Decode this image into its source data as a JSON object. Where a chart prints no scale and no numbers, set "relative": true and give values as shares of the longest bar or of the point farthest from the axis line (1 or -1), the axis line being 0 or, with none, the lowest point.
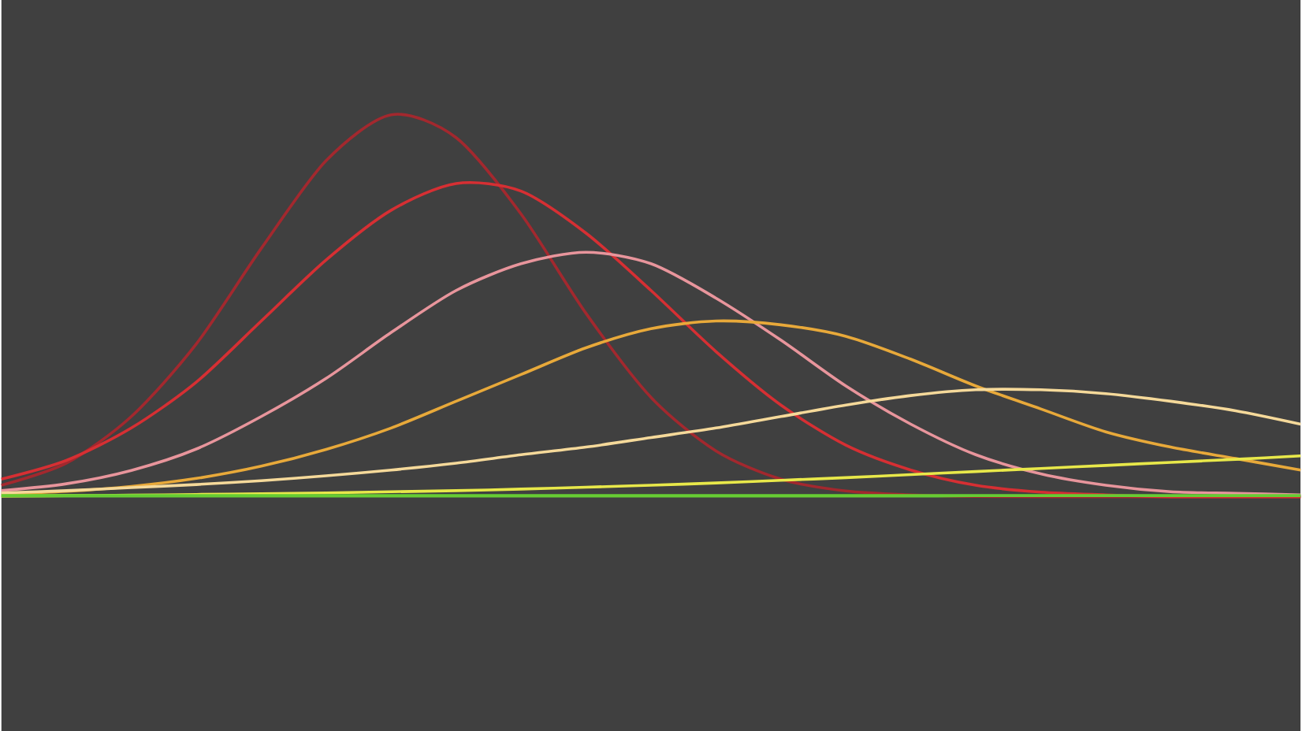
{
  "chart_data": {
    "type": "line",
    "relative": true,
    "categories": [
      null,
      null,
      null,
      null,
      null,
      null,
      null,
      null,
      null,
      null,
      null,
      null,
      null,
      null,
      null,
      null,
      null,
      null,
      null,
      null,
      null
    ],
    "series": [
      {
        "color": "#a3282e",
        "values": [
          0.03,
          0.088,
          0.21,
          0.4,
          0.65,
          0.88,
          1.0,
          0.94,
          0.74,
          0.48,
          0.26,
          0.12,
          0.046,
          0.015,
          0.005,
          0.001,
          0,
          0,
          0,
          0,
          0
        ]
      },
      {
        "color": "#d62f33",
        "values": [
          0.046,
          0.095,
          0.18,
          0.3,
          0.46,
          0.62,
          0.75,
          0.82,
          0.8,
          0.69,
          0.54,
          0.38,
          0.24,
          0.135,
          0.07,
          0.03,
          0.012,
          0.005,
          0,
          0,
          0
        ]
      },
      {
        "color": "#e8959c",
        "values": [
          0.016,
          0.034,
          0.069,
          0.125,
          0.21,
          0.31,
          0.43,
          0.54,
          0.61,
          0.64,
          0.61,
          0.52,
          0.41,
          0.29,
          0.19,
          0.11,
          0.06,
          0.03,
          0.013,
          0.009,
          0.005
        ]
      },
      {
        "color": "#e8a93a",
        "values": [
          0.007,
          0.014,
          0.027,
          0.048,
          0.08,
          0.124,
          0.18,
          0.25,
          0.32,
          0.39,
          0.44,
          0.46,
          0.45,
          0.42,
          0.36,
          0.29,
          0.23,
          0.17,
          0.13,
          0.1,
          0.07
        ]
      },
      {
        "color": "#f5d99a",
        "values": [
          0.01,
          0.016,
          0.024,
          0.032,
          0.042,
          0.055,
          0.07,
          0.088,
          0.11,
          0.13,
          0.155,
          0.18,
          0.21,
          0.24,
          0.265,
          0.28,
          0.28,
          0.27,
          0.25,
          0.225,
          0.19
        ]
      },
      {
        "color": "#e8e84a",
        "values": [
          0.002,
          0.003,
          0.004,
          0.006,
          0.008,
          0.01,
          0.013,
          0.016,
          0.02,
          0.025,
          0.03,
          0.036,
          0.043,
          0.05,
          0.058,
          0.066,
          0.074,
          0.082,
          0.09,
          0.098,
          0.107
        ]
      },
      {
        "color": "#66cc33",
        "values": [
          0.003,
          0.003,
          0.003,
          0.003,
          0.003,
          0.003,
          0.003,
          0.003,
          0.003,
          0.003,
          0.003,
          0.003,
          0.003,
          0.003,
          0.003,
          0.003,
          0.003,
          0.003,
          0.003,
          0.003,
          0.003
        ]
      }
    ]
  }
}
